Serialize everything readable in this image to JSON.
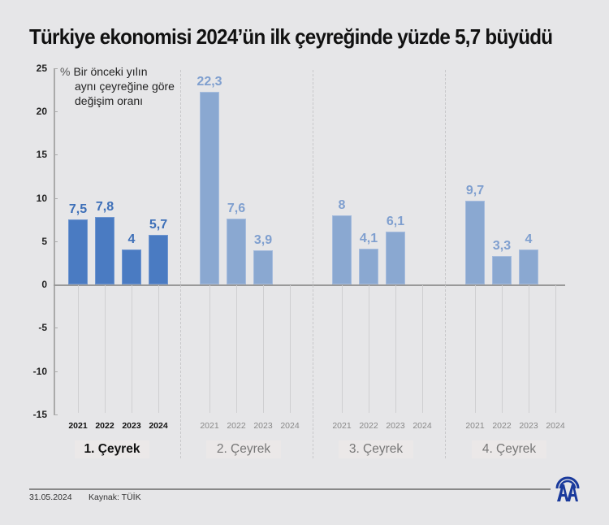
{
  "title": "Türkiye ekonomisi 2024’ün ilk çeyreğinde yüzde 5,7 büyüdü",
  "note": {
    "symbol": "%",
    "line1": "Bir önceki yılın",
    "line2": "aynı çeyreğine göre",
    "line3": "değişim oranı"
  },
  "yaxis": {
    "ticks": [
      "25",
      "20",
      "15",
      "10",
      "5",
      "0",
      "-5",
      "-10",
      "-15"
    ]
  },
  "years": [
    "2021",
    "2022",
    "2023",
    "2024"
  ],
  "quarters": [
    {
      "label": "1. Çeyrek",
      "values": [
        "7,5",
        "7,8",
        "4",
        "5,7"
      ]
    },
    {
      "label": "2. Çeyrek",
      "values": [
        "22,3",
        "7,6",
        "3,9",
        ""
      ]
    },
    {
      "label": "3. Çeyrek",
      "values": [
        "8",
        "4,1",
        "6,1",
        ""
      ]
    },
    {
      "label": "4. Çeyrek",
      "values": [
        "9,7",
        "3,3",
        "4",
        ""
      ]
    }
  ],
  "footer": {
    "date": "31.05.2024",
    "source": "Kaynak: TÜİK",
    "logo": "AA"
  },
  "colors": {
    "highlight_bar": "#4a7bc2",
    "other_bar": "#8aa8d1",
    "background": "#e6e6e8",
    "logo": "#1a3a9c"
  },
  "chart_data": {
    "type": "bar",
    "title": "Türkiye ekonomisi 2024’ün ilk çeyreğinde yüzde 5,7 büyüdü",
    "ylabel": "% Bir önceki yılın aynı çeyreğine göre değişim oranı",
    "xlabel": "",
    "ylim": [
      -15,
      25
    ],
    "yticks": [
      -15,
      -10,
      -5,
      0,
      5,
      10,
      15,
      20,
      25
    ],
    "groups": [
      "1. Çeyrek",
      "2. Çeyrek",
      "3. Çeyrek",
      "4. Çeyrek"
    ],
    "categories": [
      "2021",
      "2022",
      "2023",
      "2024"
    ],
    "series": [
      {
        "name": "1. Çeyrek",
        "values": [
          7.5,
          7.8,
          4.0,
          5.7
        ]
      },
      {
        "name": "2. Çeyrek",
        "values": [
          22.3,
          7.6,
          3.9,
          null
        ]
      },
      {
        "name": "3. Çeyrek",
        "values": [
          8.0,
          4.1,
          6.1,
          null
        ]
      },
      {
        "name": "4. Çeyrek",
        "values": [
          9.7,
          3.3,
          4.0,
          null
        ]
      }
    ],
    "highlight": "1. Çeyrek",
    "grid": false,
    "source": "Kaynak: TÜİK",
    "date": "31.05.2024"
  }
}
